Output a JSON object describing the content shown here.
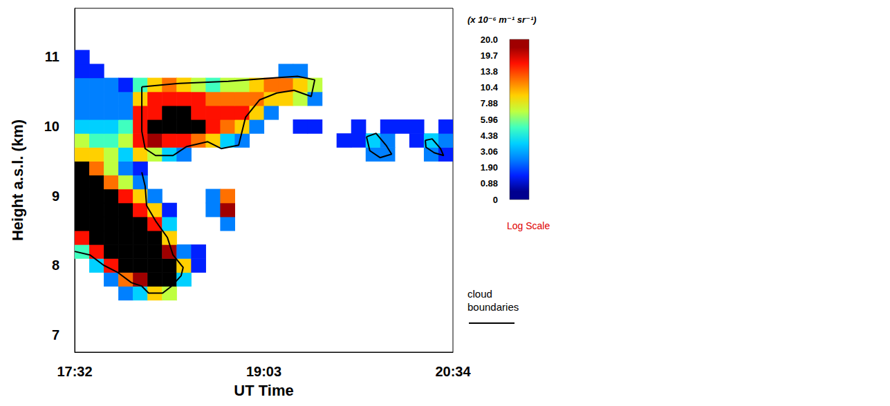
{
  "chart_data": {
    "type": "heatmap",
    "x_label": "UT Time",
    "y_label": "Height a.s.l. (km)",
    "xlim": [
      0,
      182
    ],
    "xticks": [
      {
        "value": 0,
        "label": "17:32"
      },
      {
        "value": 91,
        "label": "19:03"
      },
      {
        "value": 182,
        "label": "20:34"
      }
    ],
    "ylim": [
      6.75,
      11.7
    ],
    "yticks": [
      7,
      8,
      9,
      10,
      11
    ],
    "grid": false,
    "x_bins": [
      0,
      7,
      14,
      21,
      28,
      35,
      42,
      49,
      56,
      63,
      70,
      77,
      84,
      91,
      98,
      105,
      112,
      119,
      126,
      133,
      140,
      147,
      154,
      161,
      168,
      175,
      182
    ],
    "y_bins": [
      7.5,
      7.7,
      7.9,
      8.1,
      8.3,
      8.5,
      8.7,
      8.9,
      9.1,
      9.3,
      9.5,
      9.7,
      9.9,
      10.1,
      10.3,
      10.5,
      10.7,
      10.9,
      11.1
    ],
    "cells": [
      [
        null,
        null,
        null,
        2,
        4,
        8,
        6,
        null,
        null,
        null,
        null,
        null,
        null,
        null,
        null,
        null,
        null,
        null,
        null,
        null,
        null,
        null,
        null,
        null,
        null,
        null
      ],
      [
        null,
        null,
        3,
        12,
        20,
        30,
        25,
        4,
        null,
        null,
        null,
        null,
        null,
        null,
        null,
        null,
        null,
        null,
        null,
        null,
        null,
        null,
        null,
        null,
        null,
        null
      ],
      [
        null,
        4,
        14,
        30,
        30,
        30,
        30,
        8,
        1,
        null,
        null,
        null,
        null,
        null,
        null,
        null,
        null,
        null,
        null,
        null,
        null,
        null,
        null,
        null,
        null,
        null
      ],
      [
        5,
        15,
        30,
        30,
        30,
        30,
        20,
        3,
        1,
        null,
        null,
        null,
        null,
        null,
        null,
        null,
        null,
        null,
        null,
        null,
        null,
        null,
        null,
        null,
        null,
        null
      ],
      [
        14,
        30,
        30,
        30,
        30,
        30,
        10,
        null,
        null,
        null,
        null,
        null,
        null,
        null,
        null,
        null,
        null,
        null,
        null,
        null,
        null,
        null,
        null,
        null,
        null,
        null
      ],
      [
        30,
        30,
        30,
        30,
        30,
        18,
        4,
        null,
        null,
        null,
        2,
        null,
        null,
        null,
        null,
        null,
        null,
        null,
        null,
        null,
        null,
        null,
        null,
        null,
        null,
        null
      ],
      [
        30,
        30,
        30,
        30,
        16,
        8,
        1,
        null,
        null,
        3,
        20,
        null,
        null,
        null,
        null,
        null,
        null,
        null,
        null,
        null,
        null,
        null,
        null,
        null,
        null,
        null
      ],
      [
        30,
        30,
        30,
        16,
        8,
        3,
        null,
        null,
        null,
        2,
        12,
        null,
        null,
        null,
        null,
        null,
        null,
        null,
        null,
        null,
        null,
        null,
        null,
        null,
        null,
        null
      ],
      [
        30,
        30,
        12,
        6,
        3,
        null,
        null,
        null,
        null,
        null,
        null,
        null,
        null,
        null,
        null,
        null,
        null,
        null,
        null,
        null,
        null,
        null,
        null,
        null,
        null,
        null
      ],
      [
        30,
        12,
        7,
        3,
        1,
        null,
        null,
        null,
        null,
        null,
        null,
        null,
        null,
        null,
        null,
        null,
        null,
        null,
        null,
        null,
        null,
        null,
        null,
        null,
        null,
        null
      ],
      [
        9,
        8,
        6,
        4,
        8,
        6,
        4,
        2,
        null,
        null,
        null,
        null,
        null,
        null,
        null,
        null,
        null,
        null,
        null,
        null,
        2,
        3,
        null,
        null,
        2,
        1
      ],
      [
        6,
        5,
        5,
        6,
        14,
        20,
        16,
        15,
        12,
        8,
        4,
        2,
        null,
        null,
        null,
        null,
        null,
        null,
        1,
        1,
        4,
        3,
        null,
        1,
        4,
        3
      ],
      [
        4,
        4,
        4,
        5,
        16,
        30,
        30,
        30,
        25,
        14,
        12,
        10,
        2,
        null,
        null,
        1,
        1,
        null,
        null,
        1,
        null,
        1,
        1,
        1,
        null,
        1
      ],
      [
        3,
        3,
        3,
        3,
        14,
        18,
        25,
        30,
        18,
        16,
        14,
        14,
        9,
        2,
        null,
        null,
        null,
        null,
        null,
        null,
        null,
        null,
        null,
        null,
        null,
        null
      ],
      [
        2,
        3,
        2,
        2,
        10,
        14,
        15,
        14,
        14,
        12,
        12,
        11,
        12,
        10,
        8,
        6,
        2,
        null,
        null,
        null,
        null,
        null,
        null,
        null,
        null,
        null
      ],
      [
        2,
        2,
        2,
        1,
        5,
        10,
        12,
        8,
        6,
        5,
        6,
        7,
        8,
        12,
        12,
        10,
        6,
        null,
        null,
        null,
        null,
        null,
        null,
        null,
        null,
        null
      ],
      [
        1,
        1,
        null,
        null,
        null,
        null,
        null,
        null,
        null,
        null,
        null,
        null,
        null,
        null,
        3,
        2,
        null,
        null,
        null,
        null,
        null,
        null,
        null,
        null,
        null,
        null
      ],
      [
        1,
        null,
        null,
        null,
        null,
        null,
        null,
        null,
        null,
        null,
        null,
        null,
        null,
        null,
        null,
        null,
        null,
        null,
        null,
        null,
        null,
        null,
        null,
        null,
        null,
        null
      ]
    ],
    "colorbar": {
      "label": "(x 10⁻⁶ m⁻¹ sr⁻¹)",
      "scale_label": "Log Scale",
      "range": [
        0,
        20
      ],
      "ticks": [
        0,
        0.88,
        {
          "value": 1.9,
          "label": "1.90"
        },
        3.06,
        4.38,
        5.96,
        7.88,
        10.4,
        13.8,
        19.7,
        {
          "value": 20,
          "label": "20.0"
        }
      ],
      "colors": [
        "#00008f",
        "#0020ff",
        "#0080ff",
        "#00d0ff",
        "#40ffbf",
        "#bfff40",
        "#ffd000",
        "#ff7000",
        "#ff1000",
        "#a00000"
      ]
    },
    "boundaries": {
      "name": "cloud boundaries",
      "color": "#000000",
      "lines": [
        [
          [
            0,
            8.2
          ],
          [
            7.3,
            8.15
          ],
          [
            14,
            8.0
          ],
          [
            20.6,
            7.9
          ],
          [
            27.3,
            7.75
          ],
          [
            32.3,
            7.7
          ],
          [
            35.6,
            7.6
          ],
          [
            42.3,
            7.6
          ],
          [
            46.6,
            7.7
          ],
          [
            51.2,
            7.85
          ],
          [
            52.2,
            7.97
          ],
          [
            47.3,
            8.15
          ],
          [
            44.6,
            8.4
          ],
          [
            38.9,
            8.64
          ],
          [
            34.6,
            8.86
          ],
          [
            33.9,
            9.14
          ],
          [
            32.3,
            9.34
          ]
        ],
        [
          [
            32.3,
            10.57
          ],
          [
            50.6,
            10.62
          ],
          [
            73.9,
            10.65
          ],
          [
            97.2,
            10.7
          ],
          [
            107.2,
            10.72
          ],
          [
            115.5,
            10.67
          ],
          [
            113.8,
            10.43
          ],
          [
            105.5,
            10.52
          ],
          [
            97.2,
            10.48
          ],
          [
            88.9,
            10.38
          ],
          [
            82.2,
            10.13
          ],
          [
            78.9,
            9.73
          ],
          [
            70.5,
            9.68
          ],
          [
            63.9,
            9.78
          ],
          [
            53.9,
            9.71
          ],
          [
            47.3,
            9.58
          ],
          [
            38.9,
            9.58
          ],
          [
            33.9,
            9.68
          ],
          [
            32.3,
            9.93
          ],
          [
            32.3,
            10.57
          ]
        ],
        [
          [
            140.4,
            9.85
          ],
          [
            145,
            9.9
          ],
          [
            150,
            9.72
          ],
          [
            152.5,
            9.6
          ],
          [
            147,
            9.55
          ],
          [
            142,
            9.65
          ],
          [
            140.4,
            9.85
          ]
        ],
        [
          [
            168.7,
            9.8
          ],
          [
            172,
            9.82
          ],
          [
            176,
            9.68
          ],
          [
            177.5,
            9.58
          ],
          [
            173,
            9.62
          ],
          [
            169,
            9.7
          ],
          [
            168.7,
            9.8
          ]
        ]
      ]
    }
  }
}
